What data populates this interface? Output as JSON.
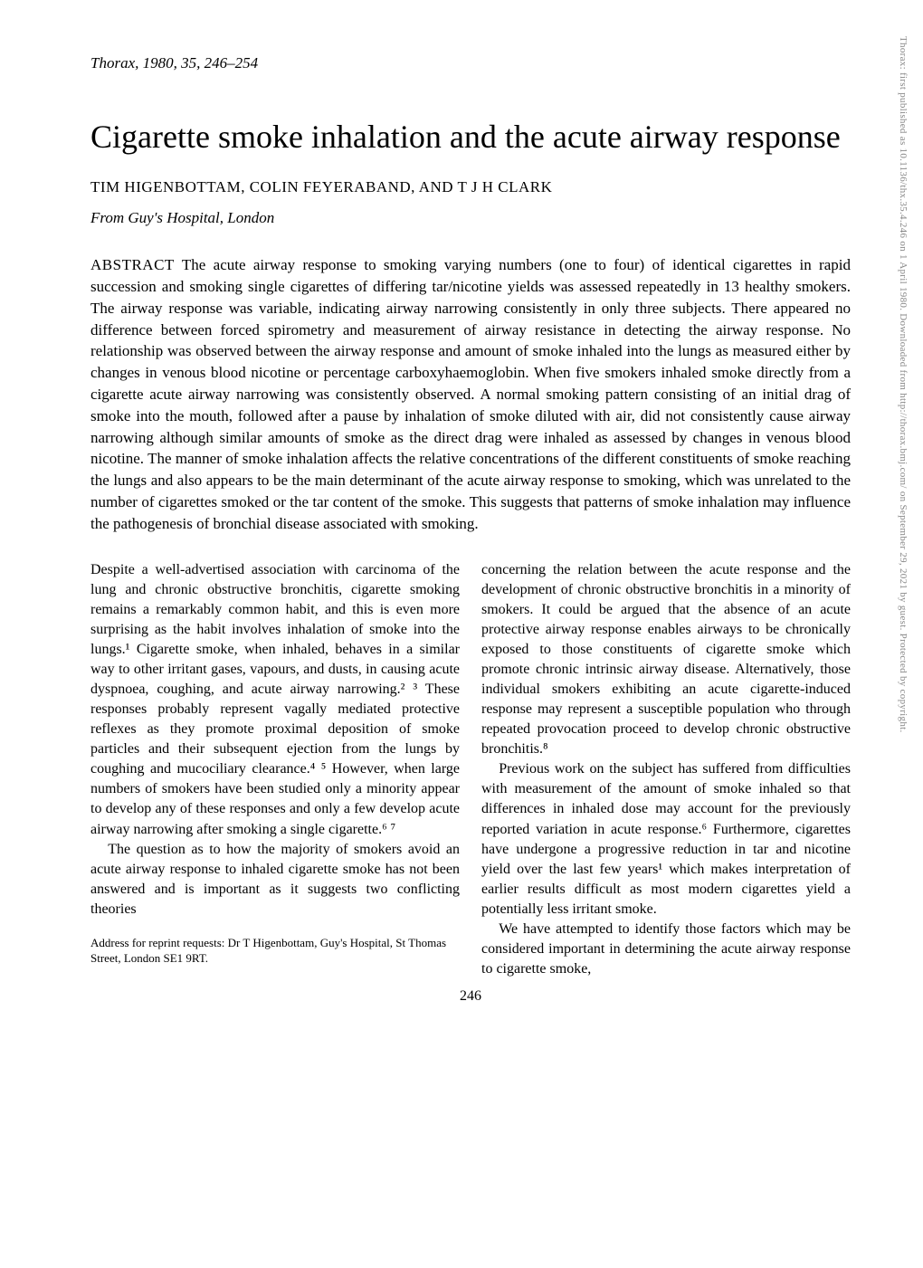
{
  "journal_header": "Thorax, 1980, 35, 246–254",
  "title": "Cigarette smoke inhalation and the acute airway response",
  "authors": "TIM HIGENBOTTAM, COLIN FEYERABAND, AND T J H CLARK",
  "affiliation": "From Guy's Hospital, London",
  "abstract_label": "ABSTRACT",
  "abstract_text": "The acute airway response to smoking varying numbers (one to four) of identical cigarettes in rapid succession and smoking single cigarettes of differing tar/nicotine yields was assessed repeatedly in 13 healthy smokers. The airway response was variable, indicating airway narrowing consistently in only three subjects. There appeared no difference between forced spirometry and measurement of airway resistance in detecting the airway response. No relationship was observed between the airway response and amount of smoke inhaled into the lungs as measured either by changes in venous blood nicotine or percentage carboxyhaemoglobin. When five smokers inhaled smoke directly from a cigarette acute airway narrowing was consistently observed. A normal smoking pattern consisting of an initial drag of smoke into the mouth, followed after a pause by inhalation of smoke diluted with air, did not consistently cause airway narrowing although similar amounts of smoke as the direct drag were inhaled as assessed by changes in venous blood nicotine. The manner of smoke inhalation affects the relative concentrations of the different constituents of smoke reaching the lungs and also appears to be the main determinant of the acute airway response to smoking, which was unrelated to the number of cigarettes smoked or the tar content of the smoke. This suggests that patterns of smoke inhalation may influence the pathogenesis of bronchial disease associated with smoking.",
  "left_para1": "Despite a well-advertised association with carcinoma of the lung and chronic obstructive bronchitis, cigarette smoking remains a remarkably common habit, and this is even more surprising as the habit involves inhalation of smoke into the lungs.¹ Cigarette smoke, when inhaled, behaves in a similar way to other irritant gases, vapours, and dusts, in causing acute dyspnoea, coughing, and acute airway narrowing.² ³ These responses probably represent vagally mediated protective reflexes as they promote proximal deposition of smoke particles and their subsequent ejection from the lungs by coughing and mucociliary clearance.⁴ ⁵ However, when large numbers of smokers have been studied only a minority appear to develop any of these responses and only a few develop acute airway narrowing after smoking a single cigarette.⁶ ⁷",
  "left_para2": "The question as to how the majority of smokers avoid an acute airway response to inhaled cigarette smoke has not been answered and is important as it suggests two conflicting theories",
  "right_para1": "concerning the relation between the acute response and the development of chronic obstructive bronchitis in a minority of smokers. It could be argued that the absence of an acute protective airway response enables airways to be chronically exposed to those constituents of cigarette smoke which promote chronic intrinsic airway disease. Alternatively, those individual smokers exhibiting an acute cigarette-induced response may represent a susceptible population who through repeated provocation proceed to develop chronic obstructive bronchitis.⁸",
  "right_para2": "Previous work on the subject has suffered from difficulties with measurement of the amount of smoke inhaled so that differences in inhaled dose may account for the previously reported variation in acute response.⁶ Furthermore, cigarettes have undergone a progressive reduction in tar and nicotine yield over the last few years¹ which makes interpretation of earlier results difficult as most modern cigarettes yield a potentially less irritant smoke.",
  "right_para3": "We have attempted to identify those factors which may be considered important in determining the acute airway response to cigarette smoke,",
  "address": "Address for reprint requests: Dr T Higenbottam, Guy's Hospital, St Thomas Street, London SE1 9RT.",
  "page_number": "246",
  "watermark": "Thorax: first published as 10.1136/thx.35.4.246 on 1 April 1980. Downloaded from http://thorax.bmj.com/ on September 29, 2021 by guest. Protected by copyright."
}
